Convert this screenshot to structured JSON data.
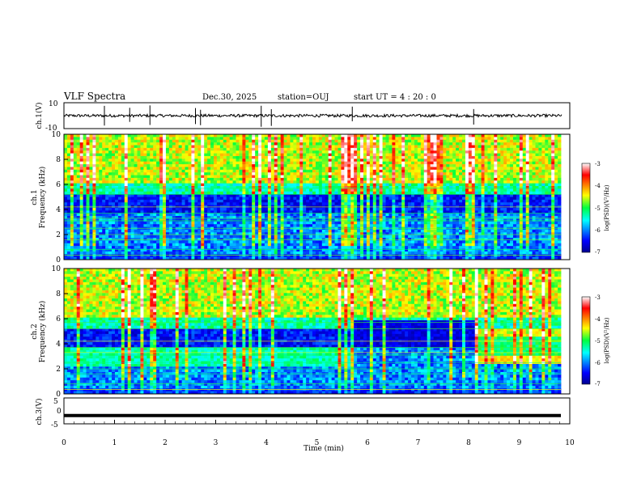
{
  "header": {
    "title": "VLF Spectra",
    "date": "Dec.30, 2025",
    "station": "station=OUJ",
    "start": "start  UT =   4 : 20 : 0"
  },
  "chart_data": [
    {
      "type": "line",
      "panel": "ch1-waveform",
      "ylabel": "ch.1(V)",
      "ylim": [
        -10,
        10
      ],
      "yticks": [
        "10",
        "-10"
      ],
      "baseline": 0,
      "x_range_min": [
        0,
        9.85
      ],
      "spikes": [
        0.8,
        1.3,
        1.7,
        2.6,
        2.7,
        3.9,
        4.1,
        5.7,
        8.1
      ]
    },
    {
      "type": "heatmap",
      "panel": "ch1-spectrogram",
      "ylabel": "ch.1",
      "ylabel2": "Frequency (kHz)",
      "ylim": [
        0,
        10
      ],
      "yticks": [
        "0",
        "2",
        "4",
        "6",
        "8",
        "10"
      ],
      "colorbar": {
        "range": [
          -7,
          -3
        ],
        "ticks": [
          "-3",
          "-4",
          "-5",
          "-6",
          "-7"
        ],
        "label": "log(PSD)(V²/Hz)"
      }
    },
    {
      "type": "heatmap",
      "panel": "ch2-spectrogram",
      "ylabel": "ch.2",
      "ylabel2": "Frequency (kHz)",
      "ylim": [
        0,
        10
      ],
      "yticks": [
        "0",
        "2",
        "4",
        "6",
        "8",
        "10"
      ],
      "colorbar": {
        "range": [
          -7,
          -3
        ],
        "ticks": [
          "-3",
          "-4",
          "-5",
          "-6",
          "-7"
        ],
        "label": "log(PSD)(V²/Hz)"
      }
    },
    {
      "type": "line",
      "panel": "ch3-waveform",
      "ylabel": "ch.3(V)",
      "ylim": [
        -5,
        5
      ],
      "yticks": [
        "5",
        "0",
        "-5"
      ],
      "constant_value": -1.8
    }
  ],
  "xaxis": {
    "label": "Time (min)",
    "range": [
      0,
      10
    ],
    "ticks": [
      "0",
      "1",
      "2",
      "3",
      "4",
      "5",
      "6",
      "7",
      "8",
      "9",
      "10"
    ]
  }
}
